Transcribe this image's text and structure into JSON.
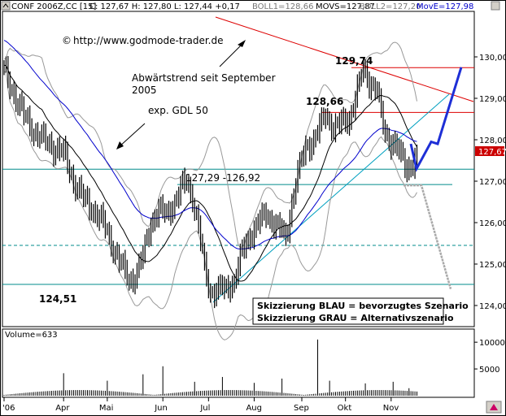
{
  "header": {
    "instrument": "CONF 2006Z,CC [15]",
    "quote": "C: 127,67  H: 127,80  L: 127,44 +0,17",
    "boll1": "BOLL1=128,66",
    "movs": "MOVS=127,87",
    "boll2": "BOLL2=127,20",
    "move": "MovE=127,98"
  },
  "annotations": {
    "copyright_icon": "©",
    "copyright_text": "http://www.godmode-trader.de",
    "trend_line1": "Abwärtstrend seit September",
    "trend_line2": "2005",
    "gdl": "exp. GDL 50",
    "level_range": "127,29 -126,92",
    "high_label": "129,74",
    "level_12866": "128,66",
    "low_label": "124,51",
    "legend_blue": "Skizzierung BLAU = bevorzugtes Szenario",
    "legend_grey": "Skizzierung GRAU = Alternativszenario",
    "volume_label": "Volume=633",
    "last_price_tag": "127,67"
  },
  "colors": {
    "price": "#000000",
    "ema": "#0000cc",
    "sma": "#000000",
    "bollinger": "#999999",
    "trendline": "#dd0000",
    "support": "#008b8b",
    "uptrend": "#00a0c0",
    "scenario_blue": "#1e2fd6",
    "scenario_grey": "#aaaaaa",
    "last_tag_bg": "#cc0000",
    "header_blue": "#0000cc"
  },
  "chart_data": {
    "type": "bar",
    "ylim": [
      123.8,
      130.3
    ],
    "yticks": [
      124,
      125,
      126,
      127,
      128,
      129,
      130
    ],
    "ytick_labels": [
      "124,00",
      "125,00",
      "126,00",
      "127,00",
      "128,00",
      "129,00",
      "130,00"
    ],
    "months": [
      "'06",
      "Apr",
      "Mai",
      "Jun",
      "Jul",
      "Aug",
      "Sep",
      "Okt",
      "Nov"
    ],
    "volume_ticks": [
      5000,
      10000
    ],
    "volume_tick_labels": [
      "5000",
      "10000"
    ],
    "volume_ylim": [
      0,
      12000
    ],
    "horizontal_levels": [
      {
        "value": 127.29,
        "style": "solid",
        "color": "teal"
      },
      {
        "value": 126.92,
        "style": "solid",
        "color": "teal"
      },
      {
        "value": 125.45,
        "style": "dashed",
        "color": "teal"
      },
      {
        "value": 124.51,
        "style": "solid",
        "color": "teal"
      },
      {
        "value": 129.74,
        "style": "solid",
        "color": "red"
      },
      {
        "value": 128.66,
        "style": "solid",
        "color": "red"
      }
    ],
    "last_close": 127.67,
    "last_high": 127.8,
    "last_low": 127.44,
    "change": 0.17,
    "boll1": 128.66,
    "movs": 127.87,
    "boll2": 127.2,
    "move": 127.98,
    "price_anchors": [
      [
        0,
        129.7
      ],
      [
        5,
        129.1
      ],
      [
        10,
        128.6
      ],
      [
        15,
        128.2
      ],
      [
        20,
        128.0
      ],
      [
        25,
        127.8
      ],
      [
        30,
        127.7
      ],
      [
        35,
        127.0
      ],
      [
        40,
        126.6
      ],
      [
        45,
        126.3
      ],
      [
        50,
        126.0
      ],
      [
        55,
        125.4
      ],
      [
        60,
        124.9
      ],
      [
        63,
        124.6
      ],
      [
        66,
        124.7
      ],
      [
        70,
        125.2
      ],
      [
        74,
        126.0
      ],
      [
        78,
        126.3
      ],
      [
        82,
        126.2
      ],
      [
        86,
        126.5
      ],
      [
        90,
        126.9
      ],
      [
        92,
        127.0
      ],
      [
        95,
        126.6
      ],
      [
        98,
        125.9
      ],
      [
        101,
        124.9
      ],
      [
        104,
        124.3
      ],
      [
        108,
        124.4
      ],
      [
        112,
        124.4
      ],
      [
        116,
        124.6
      ],
      [
        120,
        125.3
      ],
      [
        124,
        125.7
      ],
      [
        128,
        126.0
      ],
      [
        132,
        126.2
      ],
      [
        136,
        126.0
      ],
      [
        140,
        125.8
      ],
      [
        142,
        125.6
      ],
      [
        145,
        126.5
      ],
      [
        148,
        127.2
      ],
      [
        152,
        127.8
      ],
      [
        156,
        128.0
      ],
      [
        160,
        128.4
      ],
      [
        162,
        128.6
      ],
      [
        166,
        128.3
      ],
      [
        170,
        128.4
      ],
      [
        174,
        128.5
      ],
      [
        178,
        129.2
      ],
      [
        181,
        129.7
      ],
      [
        184,
        129.4
      ],
      [
        188,
        129.2
      ],
      [
        191,
        128.3
      ],
      [
        194,
        128.0
      ],
      [
        197,
        127.9
      ],
      [
        200,
        127.6
      ],
      [
        203,
        127.3
      ],
      [
        206,
        127.45
      ],
      [
        208,
        127.67
      ]
    ],
    "volume_spikes": [
      [
        30,
        4200
      ],
      [
        52,
        2800
      ],
      [
        70,
        4000
      ],
      [
        80,
        5500
      ],
      [
        96,
        2600
      ],
      [
        110,
        3500
      ],
      [
        126,
        2400
      ],
      [
        140,
        3200
      ],
      [
        158,
        10500
      ],
      [
        164,
        2800
      ],
      [
        182,
        2300
      ],
      [
        196,
        2600
      ],
      [
        204,
        1400
      ]
    ],
    "scenario_blue": [
      [
        0,
        127.9
      ],
      [
        1,
        127.3
      ],
      [
        2,
        127.95
      ],
      [
        3,
        127.9
      ],
      [
        4,
        129.75
      ]
    ],
    "scenario_grey": [
      [
        0,
        126.9
      ],
      [
        1,
        126.9
      ],
      [
        2,
        124.4
      ]
    ]
  }
}
